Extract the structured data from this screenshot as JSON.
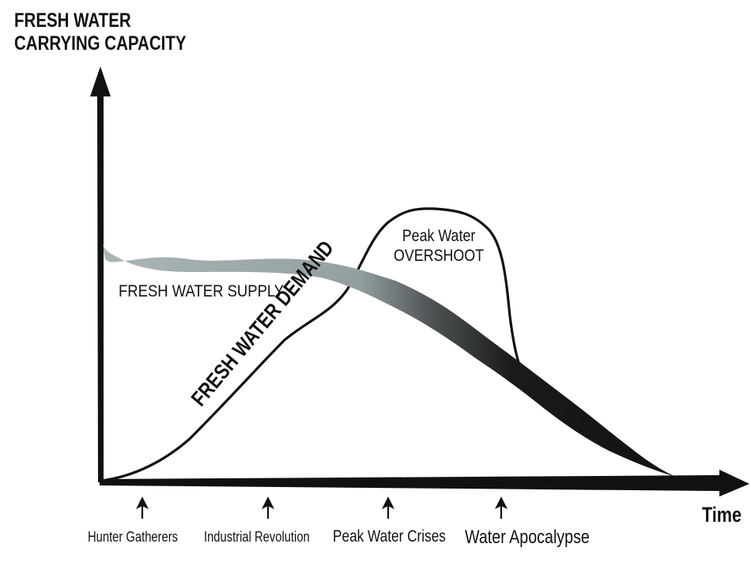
{
  "axes": {
    "y_label_line1": "FRESH WATER",
    "y_label_line2": "CARRYING CAPACITY",
    "x_label": "Time"
  },
  "curves": {
    "supply_label": "FRESH WATER SUPPLY",
    "demand_label": "FRESH WATER DEMAND",
    "peak_label_line1": "Peak Water",
    "peak_label_line2": "OVERSHOOT"
  },
  "eras": [
    {
      "label": "Hunter Gatherers"
    },
    {
      "label": "Industrial Revolution"
    },
    {
      "label": "Peak Water Crises"
    },
    {
      "label": "Water Apocalypse"
    }
  ],
  "colors": {
    "ink": "#111111",
    "supply_start": "#a9b5b7",
    "supply_mid": "#8e9a9c",
    "supply_end": "#151515"
  }
}
